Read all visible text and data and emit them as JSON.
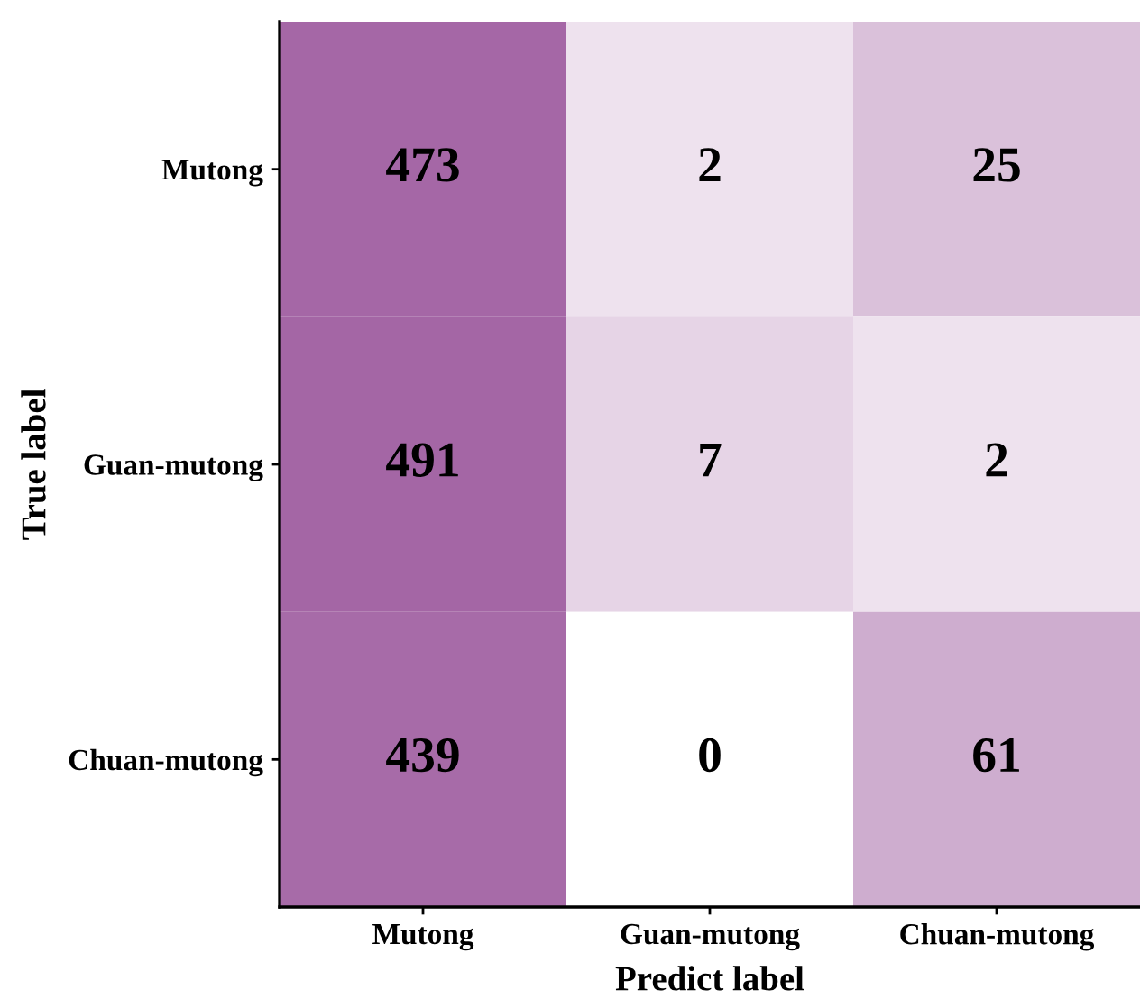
{
  "chart_data": {
    "type": "heatmap",
    "xlabel": "Predict label",
    "ylabel": "True label",
    "categories": [
      "Mutong",
      "Guan-mutong",
      "Chuan-mutong"
    ],
    "y_categories": [
      "Mutong",
      "Guan-mutong",
      "Chuan-mutong"
    ],
    "cells": [
      [
        473,
        2,
        25
      ],
      [
        491,
        7,
        2
      ],
      [
        439,
        0,
        61
      ]
    ],
    "data_labels": true
  }
}
